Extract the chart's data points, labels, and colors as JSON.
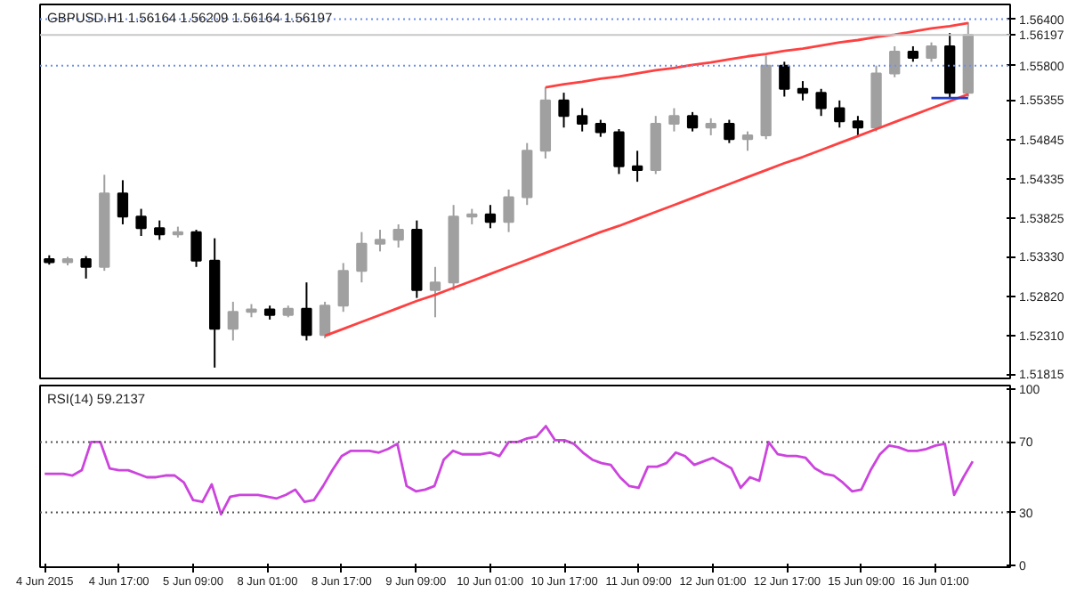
{
  "chart_data": [
    {
      "type": "candlestick",
      "title": "GBPUSD.H1  1.56164 1.56209 1.56164 1.56197",
      "categories": [
        null,
        null,
        null,
        null,
        null,
        null,
        null,
        null,
        null,
        null,
        null,
        null,
        null,
        null,
        null,
        null,
        null,
        null,
        null,
        null,
        null,
        null,
        null,
        null,
        null,
        null,
        null,
        null,
        null,
        null,
        null,
        null,
        null,
        null,
        null,
        null,
        null,
        null,
        null,
        null,
        null,
        null,
        null,
        null,
        null,
        null,
        null,
        null,
        null,
        null,
        null
      ],
      "ohlc": [
        [
          1.533,
          1.5335,
          1.5323,
          1.5326
        ],
        [
          1.5326,
          1.5333,
          1.5322,
          1.533
        ],
        [
          1.533,
          1.5334,
          1.5305,
          1.532
        ],
        [
          1.532,
          1.5439,
          1.5315,
          1.5415
        ],
        [
          1.5415,
          1.5432,
          1.5375,
          1.5385
        ],
        [
          1.5385,
          1.5395,
          1.536,
          1.537
        ],
        [
          1.537,
          1.538,
          1.5355,
          1.5362
        ],
        [
          1.5362,
          1.5372,
          1.5358,
          1.5365
        ],
        [
          1.5365,
          1.5368,
          1.532,
          1.5328
        ],
        [
          1.5328,
          1.5357,
          1.519,
          1.524
        ],
        [
          1.524,
          1.5275,
          1.5225,
          1.5262
        ],
        [
          1.5262,
          1.5272,
          1.5255,
          1.5265
        ],
        [
          1.5265,
          1.527,
          1.5252,
          1.5258
        ],
        [
          1.5258,
          1.527,
          1.5255,
          1.5266
        ],
        [
          1.5266,
          1.53,
          1.5225,
          1.5232
        ],
        [
          1.5232,
          1.5275,
          1.5228,
          1.527
        ],
        [
          1.527,
          1.5325,
          1.5262,
          1.5315
        ],
        [
          1.5315,
          1.5365,
          1.53,
          1.535
        ],
        [
          1.535,
          1.5368,
          1.534,
          1.5355
        ],
        [
          1.5355,
          1.5375,
          1.5345,
          1.5368
        ],
        [
          1.5368,
          1.538,
          1.528,
          1.529
        ],
        [
          1.529,
          1.532,
          1.5255,
          1.53
        ],
        [
          1.53,
          1.54,
          1.529,
          1.5385
        ],
        [
          1.5385,
          1.5395,
          1.5375,
          1.5388
        ],
        [
          1.5388,
          1.54,
          1.537,
          1.5378
        ],
        [
          1.5378,
          1.542,
          1.5365,
          1.541
        ],
        [
          1.541,
          1.548,
          1.54,
          1.547
        ],
        [
          1.547,
          1.5552,
          1.546,
          1.5535
        ],
        [
          1.5535,
          1.5545,
          1.55,
          1.5515
        ],
        [
          1.5515,
          1.5525,
          1.5495,
          1.5505
        ],
        [
          1.5505,
          1.551,
          1.5488,
          1.5494
        ],
        [
          1.5494,
          1.5498,
          1.544,
          1.545
        ],
        [
          1.545,
          1.547,
          1.543,
          1.5445
        ],
        [
          1.5445,
          1.5515,
          1.544,
          1.5505
        ],
        [
          1.5505,
          1.5525,
          1.5495,
          1.5515
        ],
        [
          1.5515,
          1.552,
          1.5495,
          1.55
        ],
        [
          1.55,
          1.5512,
          1.549,
          1.5505
        ],
        [
          1.5505,
          1.551,
          1.548,
          1.5485
        ],
        [
          1.5485,
          1.5495,
          1.547,
          1.549
        ],
        [
          1.549,
          1.5593,
          1.5485,
          1.558
        ],
        [
          1.558,
          1.5585,
          1.554,
          1.555
        ],
        [
          1.555,
          1.556,
          1.5535,
          1.5545
        ],
        [
          1.5545,
          1.555,
          1.5515,
          1.5525
        ],
        [
          1.5525,
          1.5535,
          1.55,
          1.5508
        ],
        [
          1.5508,
          1.5515,
          1.5488,
          1.55
        ],
        [
          1.55,
          1.558,
          1.5495,
          1.557
        ],
        [
          1.557,
          1.5605,
          1.5565,
          1.5598
        ],
        [
          1.5598,
          1.5605,
          1.5585,
          1.559
        ],
        [
          1.559,
          1.561,
          1.5585,
          1.5605
        ],
        [
          1.5605,
          1.5622,
          1.5538,
          1.5545
        ],
        [
          1.5545,
          1.5636,
          1.554,
          1.562
        ]
      ],
      "colors": [
        "#000000",
        "#a0a0a0",
        "#000000",
        "#a0a0a0",
        "#000000",
        "#000000",
        "#000000",
        "#a0a0a0",
        "#000000",
        "#000000",
        "#a0a0a0",
        "#a0a0a0",
        "#000000",
        "#a0a0a0",
        "#000000",
        "#a0a0a0",
        "#a0a0a0",
        "#a0a0a0",
        "#a0a0a0",
        "#a0a0a0",
        "#000000",
        "#a0a0a0",
        "#a0a0a0",
        "#a0a0a0",
        "#000000",
        "#a0a0a0",
        "#a0a0a0",
        "#a0a0a0",
        "#000000",
        "#000000",
        "#000000",
        "#000000",
        "#000000",
        "#a0a0a0",
        "#a0a0a0",
        "#000000",
        "#a0a0a0",
        "#000000",
        "#a0a0a0",
        "#a0a0a0",
        "#000000",
        "#000000",
        "#000000",
        "#000000",
        "#000000",
        "#a0a0a0",
        "#a0a0a0",
        "#000000",
        "#a0a0a0",
        "#000000",
        "#a0a0a0"
      ],
      "series": [
        {
          "type": "line",
          "color": "#ff4040",
          "values": [
            null,
            null,
            null,
            null,
            null,
            null,
            null,
            null,
            null,
            null,
            null,
            null,
            null,
            null,
            null,
            null,
            null,
            null,
            null,
            null,
            null,
            null,
            null,
            null,
            null,
            null,
            null,
            1.5552,
            1.5556,
            1.5559,
            1.5563,
            1.5566,
            1.557,
            1.5574,
            1.5577,
            1.5581,
            1.5584,
            1.5588,
            1.5592,
            1.5595,
            1.5599,
            1.5602,
            1.5606,
            1.561,
            1.5613,
            1.5617,
            1.562,
            1.5624,
            1.5628,
            1.5631,
            1.5635
          ]
        },
        {
          "type": "line",
          "color": "#ff4040",
          "values": [
            null,
            null,
            null,
            null,
            null,
            null,
            null,
            null,
            null,
            null,
            null,
            null,
            null,
            null,
            null,
            1.5231,
            1.524,
            1.5249,
            1.5258,
            1.5267,
            1.5276,
            1.5284,
            1.5293,
            1.5302,
            1.5311,
            1.532,
            1.5329,
            1.5338,
            1.5347,
            1.5356,
            1.5365,
            1.5373,
            1.5382,
            1.5391,
            1.54,
            1.5409,
            1.5418,
            1.5427,
            1.5436,
            1.5445,
            1.5454,
            1.5462,
            1.5471,
            1.548,
            1.5489,
            1.5498,
            1.5507,
            1.5516,
            1.5525,
            1.5534,
            1.5543
          ]
        },
        {
          "type": "line",
          "color": "#1f3fd0",
          "values": [
            null,
            null,
            null,
            null,
            null,
            null,
            null,
            null,
            null,
            null,
            null,
            null,
            null,
            null,
            null,
            null,
            null,
            null,
            null,
            null,
            null,
            null,
            null,
            null,
            null,
            null,
            null,
            null,
            null,
            null,
            null,
            null,
            null,
            null,
            null,
            null,
            null,
            null,
            null,
            null,
            null,
            null,
            null,
            null,
            null,
            null,
            null,
            null,
            1.5538,
            1.5538,
            1.5538
          ]
        }
      ],
      "ylim": [
        1.5176,
        1.5659
      ],
      "yticks": [
        1.51815,
        {
          "value": 1.5231,
          "label": "1.52310"
        },
        {
          "value": 1.5282,
          "label": "1.52820"
        },
        {
          "value": 1.5333,
          "label": "1.53330"
        },
        1.53825,
        1.54335,
        1.54845,
        1.55355,
        {
          "value": 1.558,
          "label": "1.55800"
        },
        1.56197,
        {
          "value": 1.564,
          "label": "1.56400"
        }
      ],
      "ref_lines": [
        {
          "axis": "y",
          "value": 1.564,
          "color": "#6f8fe8",
          "line_style": "dotted"
        },
        {
          "axis": "y",
          "value": 1.558,
          "color": "#6f8fe8",
          "line_style": "dotted"
        },
        {
          "axis": "y",
          "value": 1.56197,
          "color": "#c8c8c8",
          "line_style": "solid"
        }
      ],
      "tick_labels": "y",
      "grid": false
    },
    {
      "type": "line",
      "title": "RSI(14) 59.2137",
      "categories": [
        "4 Jun 2015",
        null,
        null,
        null,
        null,
        null,
        null,
        null,
        "4 Jun 17:00",
        null,
        null,
        null,
        null,
        null,
        null,
        null,
        "5 Jun 09:00",
        null,
        null,
        null,
        null,
        null,
        null,
        null,
        "8 Jun 01:00",
        null,
        null,
        null,
        null,
        null,
        null,
        null,
        "8 Jun 17:00",
        null,
        null,
        null,
        null,
        null,
        null,
        null,
        "9 Jun 09:00",
        null,
        null,
        null,
        null,
        null,
        null,
        null,
        "10 Jun 01:00",
        null,
        null,
        null,
        null,
        null,
        null,
        null,
        "10 Jun 17:00",
        null,
        null,
        null,
        null,
        null,
        null,
        null,
        "11 Jun 09:00",
        null,
        null,
        null,
        null,
        null,
        null,
        null,
        "12 Jun 01:00",
        null,
        null,
        null,
        null,
        null,
        null,
        null,
        "12 Jun 17:00",
        null,
        null,
        null,
        null,
        null,
        null,
        null,
        "15 Jun 09:00",
        null,
        null,
        null,
        null,
        null,
        null,
        null,
        "16 Jun 01:00",
        null,
        null,
        null,
        null
      ],
      "series": [
        {
          "color": "#cc44dd",
          "values": [
            52,
            52,
            52,
            51,
            54,
            70,
            70,
            55,
            54,
            54,
            52,
            50,
            50,
            51,
            51,
            47,
            37,
            36,
            46,
            29,
            39,
            40,
            40,
            40,
            39,
            38,
            40,
            43,
            36,
            37,
            45,
            54,
            62,
            65,
            65,
            65,
            64,
            66,
            69,
            45,
            42,
            43,
            45,
            60,
            65,
            63,
            63,
            63,
            64,
            62,
            70,
            70,
            72,
            73,
            79,
            71,
            71,
            69,
            64,
            60,
            58,
            57,
            50,
            45,
            44,
            56,
            56,
            58,
            64,
            62,
            57,
            59,
            61,
            58,
            55,
            44,
            50,
            48,
            70,
            63,
            62,
            62,
            61,
            55,
            52,
            51,
            47,
            42,
            43,
            54,
            63,
            68,
            67,
            65,
            65,
            66,
            68,
            69,
            40,
            50,
            59
          ]
        }
      ],
      "ylim": [
        -1,
        102
      ],
      "yticks": [
        0,
        30,
        70,
        100
      ],
      "ref_lines": [
        {
          "axis": "y",
          "value": 30,
          "color": "#555555",
          "line_style": "dotted"
        },
        {
          "axis": "y",
          "value": 70,
          "color": "#555555",
          "line_style": "dotted"
        }
      ],
      "grid": false
    }
  ]
}
